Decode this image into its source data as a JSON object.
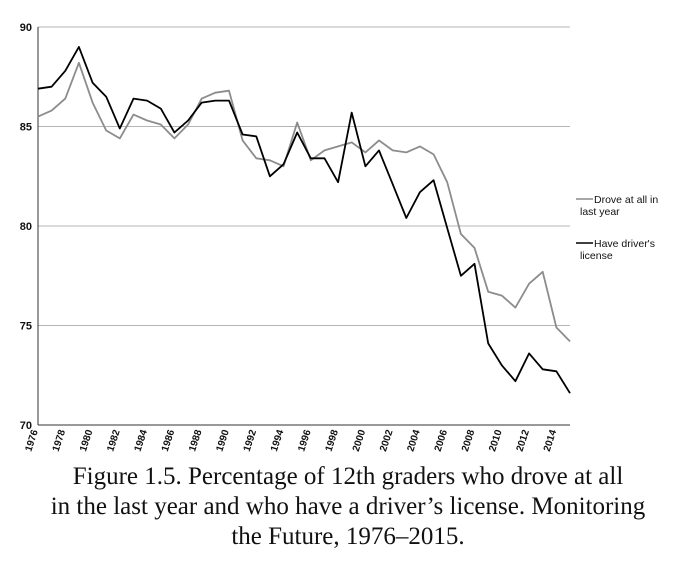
{
  "caption": {
    "line1": "Figure 1.5. Percentage of 12th graders who drove at all",
    "line2": "in the last year and who have a driver’s license. Monitoring",
    "line3": "the Future, 1976–2015."
  },
  "chart_data": {
    "type": "line",
    "title": "",
    "xlabel": "",
    "ylabel": "",
    "ylim": [
      70,
      90
    ],
    "xlim": [
      1976,
      2015
    ],
    "yticks": [
      70,
      75,
      80,
      85,
      90
    ],
    "xticks": [
      1976,
      1978,
      1980,
      1982,
      1984,
      1986,
      1988,
      1990,
      1992,
      1994,
      1996,
      1998,
      2000,
      2002,
      2004,
      2006,
      2008,
      2010,
      2012,
      2014
    ],
    "grid": "horizontal",
    "legend_position": "right",
    "x": [
      1976,
      1977,
      1978,
      1979,
      1980,
      1981,
      1982,
      1983,
      1984,
      1985,
      1986,
      1987,
      1988,
      1989,
      1990,
      1991,
      1992,
      1993,
      1994,
      1995,
      1996,
      1997,
      1998,
      1999,
      2000,
      2001,
      2002,
      2003,
      2004,
      2005,
      2006,
      2007,
      2008,
      2009,
      2010,
      2011,
      2012,
      2013,
      2014,
      2015
    ],
    "series": [
      {
        "name": "Drove at all in last year",
        "legend_lines": [
          "Drove at all in",
          "last year"
        ],
        "color": "#8c8c8c",
        "values": [
          85.5,
          85.8,
          86.4,
          88.2,
          86.2,
          84.8,
          84.4,
          85.6,
          85.3,
          85.1,
          84.4,
          85.1,
          86.4,
          86.7,
          86.8,
          84.3,
          83.4,
          83.3,
          83.0,
          85.2,
          83.3,
          83.8,
          84.0,
          84.2,
          83.7,
          84.3,
          83.8,
          83.7,
          84.0,
          83.6,
          82.2,
          79.6,
          78.9,
          76.7,
          76.5,
          75.9,
          77.1,
          77.7,
          74.9,
          74.2
        ]
      },
      {
        "name": "Have driver's license",
        "legend_lines": [
          "Have driver's",
          "license"
        ],
        "color": "#000000",
        "values": [
          86.9,
          87.0,
          87.8,
          89.0,
          87.2,
          86.5,
          84.9,
          86.4,
          86.3,
          85.9,
          84.7,
          85.3,
          86.2,
          86.3,
          86.3,
          84.6,
          84.5,
          82.5,
          83.1,
          84.7,
          83.4,
          83.4,
          82.2,
          85.7,
          83.0,
          83.8,
          82.1,
          80.4,
          81.7,
          82.3,
          79.9,
          77.5,
          78.1,
          74.1,
          73.0,
          72.2,
          73.6,
          72.8,
          72.7,
          71.6
        ]
      }
    ]
  }
}
